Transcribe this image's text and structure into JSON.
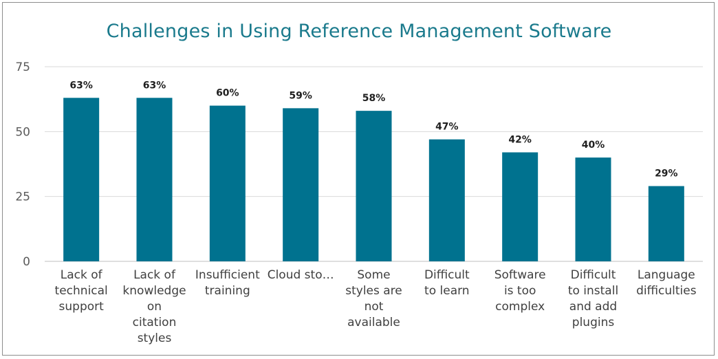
{
  "chart_data": {
    "type": "bar",
    "title": "Challenges in Using Reference Management Software",
    "xlabel": "",
    "ylabel": "",
    "ylim": [
      0,
      75
    ],
    "yticks": [
      0,
      25,
      50,
      75
    ],
    "grid": true,
    "legend": "none",
    "bar_color": "#00728f",
    "categories": [
      [
        "Lack of",
        "technical",
        "support"
      ],
      [
        "Lack of",
        "knowledge",
        "on",
        "citation",
        "styles"
      ],
      [
        "Insufficient",
        "training"
      ],
      [
        "Cloud sto…"
      ],
      [
        "Some",
        "styles are",
        "not",
        "available"
      ],
      [
        "Difficult",
        "to learn"
      ],
      [
        "Software",
        "is too",
        "complex"
      ],
      [
        "Difficult",
        "to install",
        "and add",
        "plugins"
      ],
      [
        "Language",
        "difficulties"
      ]
    ],
    "values": [
      63,
      63,
      60,
      59,
      58,
      47,
      42,
      40,
      29
    ],
    "data_labels": [
      "63%",
      "63%",
      "60%",
      "59%",
      "58%",
      "47%",
      "42%",
      "40%",
      "29%"
    ]
  }
}
